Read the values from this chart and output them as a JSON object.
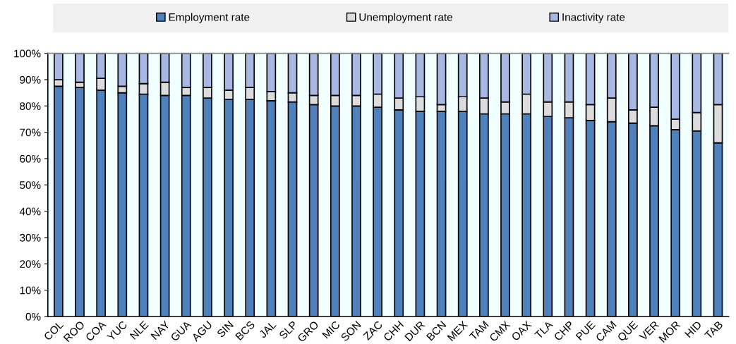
{
  "chart_data": {
    "type": "bar",
    "stacked": true,
    "categories": [
      "COL",
      "ROO",
      "COA",
      "YUC",
      "NLE",
      "NAY",
      "GUA",
      "AGU",
      "SIN",
      "BCS",
      "JAL",
      "SLP",
      "GRO",
      "MIC",
      "SON",
      "ZAC",
      "CHH",
      "DUR",
      "BCN",
      "MEX",
      "TAM",
      "CMX",
      "OAX",
      "TLA",
      "CHP",
      "PUE",
      "CAM",
      "QUE",
      "VER",
      "MOR",
      "HID",
      "TAB"
    ],
    "series": [
      {
        "name": "Employment rate",
        "color": "#4f81bd",
        "values": [
          87.5,
          87,
          86,
          85,
          84.5,
          84,
          84,
          83,
          82.5,
          82.5,
          82,
          81.5,
          80.5,
          80,
          80,
          79.5,
          78.5,
          78,
          78,
          78,
          77,
          77,
          77,
          76,
          75.5,
          74.5,
          74,
          73.5,
          72.5,
          71,
          70.5,
          66
        ]
      },
      {
        "name": "Unemployment rate",
        "color": "#dcdcdc",
        "values": [
          2.5,
          2,
          4.5,
          2.5,
          4,
          5,
          3,
          4,
          3.5,
          4.5,
          3.5,
          3.5,
          3.5,
          4,
          4,
          5,
          4.5,
          5.5,
          2.5,
          5.5,
          6,
          4.5,
          7.5,
          5.5,
          6,
          6,
          9,
          5,
          7,
          4,
          7,
          14.5
        ]
      },
      {
        "name": "Inactivity rate",
        "color": "#a7b8e3",
        "values": [
          10,
          11,
          9.5,
          12.5,
          11.5,
          11,
          13,
          13,
          14,
          13,
          14.5,
          15,
          16,
          16,
          16,
          15.5,
          17,
          16.5,
          19.5,
          16.5,
          17,
          18.5,
          15.5,
          18.5,
          18.5,
          19.5,
          17,
          21.5,
          20.5,
          25,
          22.5,
          19.5
        ]
      }
    ],
    "ylim": [
      0,
      100
    ],
    "yticks": [
      {
        "value": 0,
        "label": "0%"
      },
      {
        "value": 10,
        "label": "10%"
      },
      {
        "value": 20,
        "label": "20%"
      },
      {
        "value": 30,
        "label": "30%"
      },
      {
        "value": 40,
        "label": "40%"
      },
      {
        "value": 50,
        "label": "50%"
      },
      {
        "value": 60,
        "label": "60%"
      },
      {
        "value": 70,
        "label": "70%"
      },
      {
        "value": 80,
        "label": "80%"
      },
      {
        "value": 90,
        "label": "90%"
      },
      {
        "value": 100,
        "label": "100%"
      }
    ],
    "grid": false,
    "legend": "top"
  }
}
